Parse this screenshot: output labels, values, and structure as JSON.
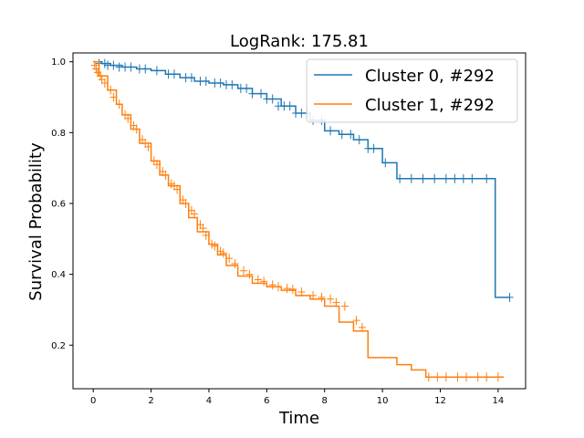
{
  "chart_data": {
    "type": "line",
    "title": "LogRank: 175.81",
    "xlabel": "Time",
    "ylabel": "Survival Probability",
    "xlim": [
      -0.7,
      14.95
    ],
    "ylim": [
      0.077,
      1.025
    ],
    "xticks": [
      0,
      2,
      4,
      6,
      8,
      10,
      12,
      14
    ],
    "yticks": [
      0.2,
      0.4,
      0.6,
      0.8,
      1.0
    ],
    "xtick_labels": [
      "0",
      "2",
      "4",
      "6",
      "8",
      "10",
      "12",
      "14"
    ],
    "ytick_labels": [
      "0.2",
      "0.4",
      "0.6",
      "0.8",
      "1.0"
    ],
    "grid": false,
    "legend_position": "top-right",
    "series": [
      {
        "name": "Cluster 0, #292",
        "color": "#1f77b4",
        "x": [
          0,
          0.3,
          0.6,
          1.0,
          1.5,
          2.0,
          2.5,
          3.0,
          3.5,
          4.0,
          4.5,
          5.0,
          5.5,
          6.0,
          6.5,
          7.0,
          7.5,
          8.0,
          8.5,
          9.0,
          9.5,
          10.0,
          10.5,
          11.0,
          12.0,
          13.0,
          13.9,
          14.4
        ],
        "y": [
          1.0,
          0.995,
          0.99,
          0.985,
          0.98,
          0.975,
          0.965,
          0.955,
          0.945,
          0.94,
          0.935,
          0.925,
          0.91,
          0.895,
          0.875,
          0.855,
          0.835,
          0.805,
          0.795,
          0.78,
          0.755,
          0.715,
          0.67,
          0.67,
          0.67,
          0.67,
          0.335,
          0.335
        ],
        "censor_x": [
          0.2,
          0.4,
          0.5,
          0.7,
          0.9,
          1.1,
          1.3,
          1.6,
          1.8,
          2.2,
          2.6,
          2.8,
          3.2,
          3.4,
          3.7,
          3.9,
          4.2,
          4.4,
          4.6,
          4.8,
          5.1,
          5.3,
          5.5,
          5.8,
          6.0,
          6.2,
          6.4,
          6.6,
          6.8,
          7.0,
          7.2,
          7.4,
          7.6,
          7.9,
          8.2,
          8.6,
          8.9,
          9.2,
          9.5,
          9.7,
          10.1,
          10.6,
          11.0,
          11.4,
          11.8,
          12.2,
          12.5,
          12.8,
          13.1,
          13.6,
          14.4
        ],
        "censor_y": [
          0.995,
          0.995,
          0.99,
          0.99,
          0.985,
          0.985,
          0.985,
          0.98,
          0.98,
          0.975,
          0.965,
          0.965,
          0.955,
          0.955,
          0.945,
          0.945,
          0.94,
          0.94,
          0.935,
          0.935,
          0.925,
          0.925,
          0.91,
          0.91,
          0.895,
          0.895,
          0.875,
          0.875,
          0.875,
          0.855,
          0.855,
          0.855,
          0.835,
          0.835,
          0.805,
          0.795,
          0.795,
          0.78,
          0.755,
          0.755,
          0.715,
          0.67,
          0.67,
          0.67,
          0.67,
          0.67,
          0.67,
          0.67,
          0.67,
          0.67,
          0.335
        ]
      },
      {
        "name": "Cluster 1, #292",
        "color": "#ff7f0e",
        "x": [
          0,
          0.2,
          0.5,
          0.8,
          1.0,
          1.3,
          1.6,
          2.0,
          2.3,
          2.6,
          3.0,
          3.3,
          3.6,
          4.0,
          4.3,
          4.6,
          5.0,
          5.5,
          6.0,
          6.5,
          7.0,
          7.5,
          8.0,
          8.5,
          9.0,
          9.5,
          10.0,
          10.5,
          11.0,
          11.5,
          12.0,
          13.0,
          14.2
        ],
        "y": [
          1.0,
          0.96,
          0.92,
          0.88,
          0.85,
          0.81,
          0.77,
          0.72,
          0.68,
          0.65,
          0.6,
          0.56,
          0.52,
          0.485,
          0.455,
          0.425,
          0.395,
          0.375,
          0.365,
          0.355,
          0.34,
          0.33,
          0.31,
          0.265,
          0.24,
          0.165,
          0.165,
          0.145,
          0.13,
          0.11,
          0.11,
          0.11,
          0.11
        ],
        "censor_x": [
          0.05,
          0.1,
          0.15,
          0.25,
          0.3,
          0.4,
          0.6,
          0.7,
          0.9,
          1.1,
          1.2,
          1.4,
          1.5,
          1.7,
          1.8,
          1.9,
          2.1,
          2.2,
          2.4,
          2.5,
          2.7,
          2.8,
          2.9,
          3.1,
          3.2,
          3.4,
          3.5,
          3.7,
          3.8,
          3.9,
          4.1,
          4.2,
          4.4,
          4.5,
          4.7,
          4.9,
          5.2,
          5.4,
          5.7,
          5.9,
          6.2,
          6.4,
          6.7,
          6.9,
          7.2,
          7.6,
          7.9,
          8.2,
          8.4,
          8.7,
          9.1,
          9.3,
          11.6,
          11.9,
          12.2,
          12.6,
          12.9,
          13.3,
          13.6,
          14.0
        ],
        "censor_y": [
          0.99,
          0.98,
          0.97,
          0.96,
          0.95,
          0.94,
          0.92,
          0.9,
          0.88,
          0.85,
          0.84,
          0.82,
          0.81,
          0.78,
          0.77,
          0.76,
          0.72,
          0.71,
          0.69,
          0.68,
          0.655,
          0.65,
          0.64,
          0.61,
          0.6,
          0.58,
          0.57,
          0.54,
          0.53,
          0.51,
          0.485,
          0.48,
          0.465,
          0.46,
          0.445,
          0.43,
          0.41,
          0.4,
          0.385,
          0.38,
          0.37,
          0.365,
          0.36,
          0.358,
          0.35,
          0.34,
          0.335,
          0.33,
          0.32,
          0.31,
          0.27,
          0.25,
          0.11,
          0.11,
          0.11,
          0.11,
          0.11,
          0.11,
          0.11,
          0.11
        ]
      }
    ]
  }
}
